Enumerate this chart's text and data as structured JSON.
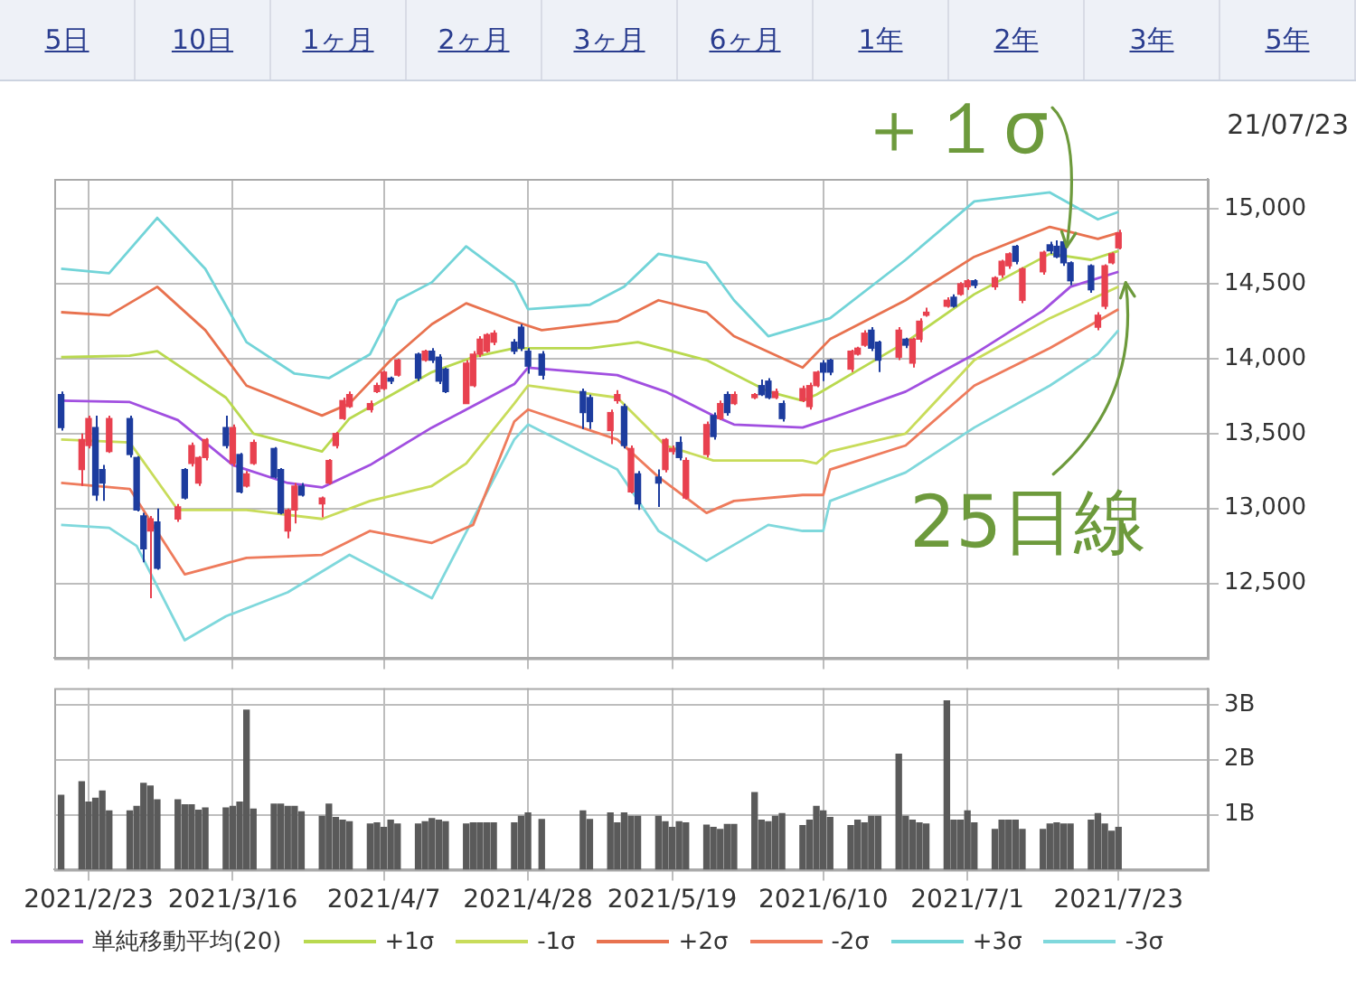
{
  "chart_data": [
    {
      "type": "candlestick",
      "annotations": [
        "5日",
        "10日",
        "1ヶ月",
        "2ヶ月",
        "3ヶ月",
        "6ヶ月",
        "1年",
        "2年",
        "3年",
        "5年",
        "21/07/23",
        {
          "text": "＋１σ",
          "x": "2021-07-16",
          "y": 14650
        },
        {
          "text": "25日線",
          "x": "2021-07-23",
          "y": 14580
        }
      ],
      "x": [
        "2021-02-19",
        "2021-02-22",
        "2021-02-23",
        "2021-02-24",
        "2021-02-25",
        "2021-02-26",
        "2021-03-01",
        "2021-03-02",
        "2021-03-03",
        "2021-03-04",
        "2021-03-05",
        "2021-03-08",
        "2021-03-09",
        "2021-03-10",
        "2021-03-11",
        "2021-03-12",
        "2021-03-15",
        "2021-03-16",
        "2021-03-17",
        "2021-03-18",
        "2021-03-19",
        "2021-03-22",
        "2021-03-23",
        "2021-03-24",
        "2021-03-25",
        "2021-03-26",
        "2021-03-29",
        "2021-03-30",
        "2021-03-31",
        "2021-04-01",
        "2021-04-02",
        "2021-04-05",
        "2021-04-06",
        "2021-04-07",
        "2021-04-08",
        "2021-04-09",
        "2021-04-12",
        "2021-04-13",
        "2021-04-14",
        "2021-04-15",
        "2021-04-16",
        "2021-04-19",
        "2021-04-20",
        "2021-04-21",
        "2021-04-22",
        "2021-04-23",
        "2021-04-26",
        "2021-04-27",
        "2021-04-28",
        "2021-04-30",
        "2021-05-06",
        "2021-05-07",
        "2021-05-10",
        "2021-05-11",
        "2021-05-12",
        "2021-05-13",
        "2021-05-14",
        "2021-05-17",
        "2021-05-18",
        "2021-05-19",
        "2021-05-20",
        "2021-05-21",
        "2021-05-24",
        "2021-05-25",
        "2021-05-26",
        "2021-05-27",
        "2021-05-28",
        "2021-05-31",
        "2021-06-01",
        "2021-06-02",
        "2021-06-03",
        "2021-06-04",
        "2021-06-07",
        "2021-06-08",
        "2021-06-09",
        "2021-06-10",
        "2021-06-11",
        "2021-06-14",
        "2021-06-15",
        "2021-06-16",
        "2021-06-17",
        "2021-06-18",
        "2021-06-21",
        "2021-06-22",
        "2021-06-23",
        "2021-06-24",
        "2021-06-25",
        "2021-06-28",
        "2021-06-29",
        "2021-06-30",
        "2021-07-01",
        "2021-07-02",
        "2021-07-05",
        "2021-07-06",
        "2021-07-07",
        "2021-07-08",
        "2021-07-09",
        "2021-07-12",
        "2021-07-13",
        "2021-07-14",
        "2021-07-15",
        "2021-07-16",
        "2021-07-19",
        "2021-07-20",
        "2021-07-21",
        "2021-07-22",
        "2021-07-23"
      ],
      "ohlc": [
        [
          13760,
          13780,
          13520,
          13540
        ],
        [
          13260,
          13500,
          13150,
          13460
        ],
        [
          13420,
          13620,
          13400,
          13600
        ],
        [
          13540,
          13620,
          13050,
          13090
        ],
        [
          13260,
          13290,
          13050,
          13170
        ],
        [
          13380,
          13620,
          13370,
          13600
        ],
        [
          13600,
          13620,
          13340,
          13360
        ],
        [
          13340,
          13350,
          12980,
          12990
        ],
        [
          12950,
          12970,
          12640,
          12730
        ],
        [
          12850,
          12950,
          12400,
          12930
        ],
        [
          12910,
          13000,
          12590,
          12600
        ],
        [
          12930,
          13030,
          12910,
          13010
        ],
        [
          13260,
          13270,
          13060,
          13070
        ],
        [
          13300,
          13440,
          13280,
          13420
        ],
        [
          13170,
          13350,
          13150,
          13340
        ],
        [
          13340,
          13470,
          13320,
          13460
        ],
        [
          13540,
          13620,
          13400,
          13420
        ],
        [
          13300,
          13560,
          13280,
          13540
        ],
        [
          13360,
          13370,
          13100,
          13110
        ],
        [
          13150,
          13250,
          13140,
          13230
        ],
        [
          13300,
          13460,
          13290,
          13440
        ],
        [
          13400,
          13410,
          13200,
          13210
        ],
        [
          13260,
          13270,
          12960,
          12970
        ],
        [
          12850,
          13000,
          12800,
          12990
        ],
        [
          12990,
          13170,
          12900,
          13150
        ],
        [
          13150,
          13170,
          13080,
          13090
        ],
        [
          13030,
          13080,
          12940,
          13070
        ],
        [
          13170,
          13330,
          13160,
          13320
        ],
        [
          13420,
          13510,
          13400,
          13500
        ],
        [
          13600,
          13740,
          13590,
          13720
        ],
        [
          13680,
          13780,
          13670,
          13760
        ],
        [
          13660,
          13720,
          13640,
          13700
        ],
        [
          13780,
          13840,
          13770,
          13820
        ],
        [
          13800,
          13920,
          13790,
          13910
        ],
        [
          13870,
          13880,
          13830,
          13850
        ],
        [
          13890,
          14000,
          13880,
          13990
        ],
        [
          14030,
          14040,
          13850,
          13870
        ],
        [
          13990,
          14060,
          13980,
          14050
        ],
        [
          14050,
          14070,
          13970,
          13990
        ],
        [
          14010,
          14030,
          13830,
          13850
        ],
        [
          13930,
          13940,
          13770,
          13780
        ],
        [
          13700,
          13990,
          13700,
          13970
        ],
        [
          13820,
          14050,
          13810,
          14030
        ],
        [
          14030,
          14150,
          14010,
          14130
        ],
        [
          14050,
          14170,
          14040,
          14160
        ],
        [
          14110,
          14190,
          14090,
          14170
        ],
        [
          14110,
          14130,
          14030,
          14050
        ],
        [
          14210,
          14230,
          14050,
          14070
        ],
        [
          14050,
          14070,
          13900,
          13950
        ],
        [
          14030,
          14050,
          13860,
          13890
        ],
        [
          13780,
          13800,
          13530,
          13640
        ],
        [
          13740,
          13760,
          13530,
          13580
        ],
        [
          13520,
          13660,
          13430,
          13640
        ],
        [
          13720,
          13790,
          13700,
          13760
        ],
        [
          13680,
          13700,
          13400,
          13420
        ],
        [
          13110,
          13420,
          13100,
          13400
        ],
        [
          13230,
          13250,
          12990,
          13030
        ],
        [
          13210,
          13260,
          13010,
          13170
        ],
        [
          13260,
          13470,
          13240,
          13460
        ],
        [
          13380,
          13420,
          13360,
          13400
        ],
        [
          13440,
          13480,
          13320,
          13340
        ],
        [
          13070,
          13340,
          13060,
          13320
        ],
        [
          13360,
          13580,
          13340,
          13560
        ],
        [
          13620,
          13640,
          13460,
          13480
        ],
        [
          13600,
          13720,
          13590,
          13700
        ],
        [
          13760,
          13780,
          13620,
          13640
        ],
        [
          13700,
          13780,
          13690,
          13760
        ],
        [
          13740,
          13770,
          13730,
          13760
        ],
        [
          13820,
          13860,
          13750,
          13760
        ],
        [
          13850,
          13870,
          13730,
          13740
        ],
        [
          13740,
          13800,
          13730,
          13780
        ],
        [
          13700,
          13720,
          13580,
          13600
        ],
        [
          13720,
          13820,
          13710,
          13800
        ],
        [
          13680,
          13840,
          13660,
          13820
        ],
        [
          13820,
          13920,
          13810,
          13910
        ],
        [
          13970,
          13990,
          13850,
          13910
        ],
        [
          13990,
          14000,
          13890,
          13910
        ],
        [
          13930,
          14060,
          13910,
          14050
        ],
        [
          14030,
          14080,
          14020,
          14070
        ],
        [
          14090,
          14190,
          14080,
          14170
        ],
        [
          14190,
          14210,
          14050,
          14070
        ],
        [
          14110,
          14120,
          13910,
          13990
        ],
        [
          14010,
          14210,
          13990,
          14190
        ],
        [
          14130,
          14140,
          14070,
          14090
        ],
        [
          13970,
          14140,
          13940,
          14130
        ],
        [
          14130,
          14270,
          14110,
          14250
        ],
        [
          14290,
          14340,
          14280,
          14310
        ],
        [
          14350,
          14410,
          14340,
          14390
        ],
        [
          14410,
          14430,
          14340,
          14350
        ],
        [
          14430,
          14510,
          14420,
          14500
        ],
        [
          14480,
          14530,
          14460,
          14520
        ],
        [
          14520,
          14530,
          14470,
          14490
        ],
        [
          14480,
          14550,
          14460,
          14540
        ],
        [
          14560,
          14660,
          14540,
          14650
        ],
        [
          14620,
          14710,
          14600,
          14700
        ],
        [
          14750,
          14760,
          14630,
          14650
        ],
        [
          14390,
          14610,
          14370,
          14600
        ],
        [
          14580,
          14720,
          14560,
          14710
        ],
        [
          14760,
          14780,
          14700,
          14720
        ],
        [
          14750,
          14790,
          14670,
          14680
        ],
        [
          14780,
          14800,
          14620,
          14640
        ],
        [
          14640,
          14650,
          14490,
          14520
        ],
        [
          14620,
          14630,
          14440,
          14460
        ],
        [
          14210,
          14310,
          14190,
          14290
        ],
        [
          14350,
          14630,
          14330,
          14620
        ],
        [
          14640,
          14710,
          14630,
          14700
        ],
        [
          14740,
          14860,
          14730,
          14840
        ]
      ],
      "colors": [
        "#1d3c9e",
        "#e8414f",
        "#e8414f",
        "#1d3c9e",
        "#1d3c9e",
        "#e8414f",
        "#1d3c9e",
        "#1d3c9e",
        "#1d3c9e",
        "#e8414f",
        "#1d3c9e",
        "#e8414f",
        "#1d3c9e",
        "#e8414f",
        "#e8414f",
        "#e8414f",
        "#1d3c9e",
        "#e8414f",
        "#1d3c9e",
        "#e8414f",
        "#e8414f",
        "#1d3c9e",
        "#1d3c9e",
        "#e8414f",
        "#e8414f",
        "#1d3c9e",
        "#e8414f",
        "#e8414f",
        "#e8414f",
        "#e8414f",
        "#e8414f",
        "#e8414f",
        "#e8414f",
        "#e8414f",
        "#1d3c9e",
        "#e8414f",
        "#1d3c9e",
        "#e8414f",
        "#1d3c9e",
        "#1d3c9e",
        "#1d3c9e",
        "#e8414f",
        "#e8414f",
        "#e8414f",
        "#e8414f",
        "#e8414f",
        "#1d3c9e",
        "#1d3c9e",
        "#1d3c9e",
        "#1d3c9e",
        "#1d3c9e",
        "#1d3c9e",
        "#e8414f",
        "#e8414f",
        "#1d3c9e",
        "#e8414f",
        "#1d3c9e",
        "#1d3c9e",
        "#e8414f",
        "#e8414f",
        "#1d3c9e",
        "#e8414f",
        "#e8414f",
        "#1d3c9e",
        "#e8414f",
        "#1d3c9e",
        "#e8414f",
        "#e8414f",
        "#1d3c9e",
        "#1d3c9e",
        "#e8414f",
        "#1d3c9e",
        "#e8414f",
        "#e8414f",
        "#e8414f",
        "#1d3c9e",
        "#1d3c9e",
        "#e8414f",
        "#e8414f",
        "#e8414f",
        "#1d3c9e",
        "#1d3c9e",
        "#e8414f",
        "#1d3c9e",
        "#e8414f",
        "#e8414f",
        "#e8414f",
        "#e8414f",
        "#1d3c9e",
        "#e8414f",
        "#e8414f",
        "#1d3c9e",
        "#e8414f",
        "#e8414f",
        "#e8414f",
        "#1d3c9e",
        "#e8414f",
        "#e8414f",
        "#1d3c9e",
        "#1d3c9e",
        "#1d3c9e",
        "#1d3c9e",
        "#1d3c9e",
        "#e8414f",
        "#e8414f",
        "#e8414f",
        "#e8414f"
      ],
      "series": [
        {
          "name": "単純移動平均(20)",
          "type": "line",
          "color": "#a14fe0",
          "x": [
            "2021-02-19",
            "2021-03-01",
            "2021-03-08",
            "2021-03-16",
            "2021-03-24",
            "2021-03-29",
            "2021-04-05",
            "2021-04-14",
            "2021-04-19",
            "2021-04-26",
            "2021-04-28",
            "2021-05-11",
            "2021-05-18",
            "2021-05-25",
            "2021-05-28",
            "2021-06-07",
            "2021-06-11",
            "2021-06-22",
            "2021-07-02",
            "2021-07-12",
            "2021-07-16",
            "2021-07-23"
          ],
          "values": [
            13720,
            13710,
            13590,
            13290,
            13170,
            13140,
            13290,
            13540,
            13660,
            13830,
            13940,
            13890,
            13780,
            13620,
            13560,
            13540,
            13600,
            13780,
            14030,
            14320,
            14480,
            14580
          ]
        },
        {
          "name": "+1σ",
          "type": "line",
          "color": "#b9d94f",
          "x": [
            "2021-02-19",
            "2021-03-01",
            "2021-03-05",
            "2021-03-15",
            "2021-03-19",
            "2021-03-29",
            "2021-04-02",
            "2021-04-14",
            "2021-04-20",
            "2021-04-26",
            "2021-05-07",
            "2021-05-14",
            "2021-05-24",
            "2021-06-02",
            "2021-06-07",
            "2021-06-09",
            "2021-06-22",
            "2021-07-02",
            "2021-07-13",
            "2021-07-19",
            "2021-07-23"
          ],
          "values": [
            14010,
            14020,
            14050,
            13740,
            13500,
            13380,
            13600,
            13910,
            14010,
            14070,
            14070,
            14110,
            13990,
            13780,
            13720,
            13760,
            14110,
            14430,
            14700,
            14660,
            14720
          ]
        },
        {
          "name": "-1σ",
          "type": "line",
          "color": "#c8dc5a",
          "x": [
            "2021-02-19",
            "2021-03-01",
            "2021-03-08",
            "2021-03-18",
            "2021-03-29",
            "2021-04-05",
            "2021-04-14",
            "2021-04-19",
            "2021-04-26",
            "2021-04-28",
            "2021-05-11",
            "2021-05-18",
            "2021-05-25",
            "2021-06-07",
            "2021-06-09",
            "2021-06-11",
            "2021-06-22",
            "2021-07-02",
            "2021-07-13",
            "2021-07-23"
          ],
          "values": [
            13460,
            13440,
            12990,
            12990,
            12930,
            13050,
            13150,
            13300,
            13700,
            13820,
            13740,
            13420,
            13320,
            13320,
            13300,
            13380,
            13500,
            13990,
            14270,
            14480
          ]
        },
        {
          "name": "+2σ",
          "type": "line",
          "color": "#e8724f",
          "x": [
            "2021-02-19",
            "2021-02-26",
            "2021-03-05",
            "2021-03-12",
            "2021-03-18",
            "2021-03-29",
            "2021-04-02",
            "2021-04-08",
            "2021-04-14",
            "2021-04-19",
            "2021-04-26",
            "2021-04-30",
            "2021-05-11",
            "2021-05-17",
            "2021-05-24",
            "2021-05-28",
            "2021-06-07",
            "2021-06-11",
            "2021-06-22",
            "2021-07-02",
            "2021-07-13",
            "2021-07-20",
            "2021-07-23"
          ],
          "values": [
            14310,
            14290,
            14480,
            14190,
            13820,
            13620,
            13700,
            13990,
            14230,
            14370,
            14250,
            14190,
            14250,
            14390,
            14310,
            14150,
            13940,
            14130,
            14390,
            14680,
            14880,
            14800,
            14840
          ]
        },
        {
          "name": "-2σ",
          "type": "line",
          "color": "#ee7b5c",
          "x": [
            "2021-02-19",
            "2021-03-01",
            "2021-03-09",
            "2021-03-18",
            "2021-03-29",
            "2021-04-05",
            "2021-04-14",
            "2021-04-20",
            "2021-04-26",
            "2021-04-28",
            "2021-05-11",
            "2021-05-17",
            "2021-05-24",
            "2021-05-28",
            "2021-06-07",
            "2021-06-10",
            "2021-06-11",
            "2021-06-22",
            "2021-07-02",
            "2021-07-13",
            "2021-07-23"
          ],
          "values": [
            13170,
            13130,
            12560,
            12670,
            12690,
            12850,
            12770,
            12890,
            13580,
            13660,
            13460,
            13210,
            12970,
            13050,
            13090,
            13090,
            13260,
            13420,
            13820,
            14070,
            14330
          ]
        },
        {
          "name": "+3σ",
          "type": "line",
          "color": "#72d4d8",
          "x": [
            "2021-02-19",
            "2021-02-26",
            "2021-03-05",
            "2021-03-12",
            "2021-03-18",
            "2021-03-25",
            "2021-03-30",
            "2021-04-05",
            "2021-04-09",
            "2021-04-14",
            "2021-04-19",
            "2021-04-26",
            "2021-04-28",
            "2021-05-07",
            "2021-05-12",
            "2021-05-17",
            "2021-05-24",
            "2021-05-28",
            "2021-06-02",
            "2021-06-11",
            "2021-06-22",
            "2021-07-02",
            "2021-07-13",
            "2021-07-20",
            "2021-07-23"
          ],
          "values": [
            14600,
            14570,
            14940,
            14600,
            14110,
            13900,
            13870,
            14030,
            14390,
            14510,
            14750,
            14510,
            14330,
            14360,
            14480,
            14700,
            14640,
            14390,
            14150,
            14270,
            14660,
            15050,
            15110,
            14930,
            14980
          ]
        },
        {
          "name": "-3σ",
          "type": "line",
          "color": "#7fd8dc",
          "x": [
            "2021-02-19",
            "2021-02-26",
            "2021-03-02",
            "2021-03-09",
            "2021-03-15",
            "2021-03-24",
            "2021-04-02",
            "2021-04-14",
            "2021-04-26",
            "2021-04-28",
            "2021-05-11",
            "2021-05-17",
            "2021-05-24",
            "2021-06-02",
            "2021-06-07",
            "2021-06-10",
            "2021-06-11",
            "2021-06-22",
            "2021-07-02",
            "2021-07-13",
            "2021-07-20",
            "2021-07-23"
          ],
          "values": [
            12890,
            12870,
            12750,
            12120,
            12280,
            12440,
            12690,
            12400,
            13460,
            13560,
            13260,
            12850,
            12650,
            12890,
            12850,
            12850,
            13050,
            13240,
            13540,
            13820,
            14030,
            14190
          ]
        }
      ],
      "xlim": [
        "2021-02-18",
        "2021-08-05"
      ],
      "xticks": [
        {
          "value": "2021-02-23",
          "label": null
        },
        {
          "value": "2021-03-16",
          "label": null
        },
        {
          "value": "2021-04-07",
          "label": null
        },
        {
          "value": "2021-04-28",
          "label": null
        },
        {
          "value": "2021-05-19",
          "label": null
        },
        {
          "value": "2021-06-10",
          "label": null
        },
        {
          "value": "2021-07-01",
          "label": null
        },
        {
          "value": "2021-07-23",
          "label": null
        }
      ],
      "ylim": [
        12000,
        15200
      ],
      "yticks": [
        {
          "value": 12500,
          "label": "12,500"
        },
        {
          "value": 13000,
          "label": "13,000"
        },
        {
          "value": 13500,
          "label": "13,500"
        },
        {
          "value": 14000,
          "label": "14,000"
        },
        {
          "value": 14500,
          "label": "14,500"
        },
        {
          "value": 15000,
          "label": "15,000"
        }
      ],
      "tick_labels": "y",
      "grid": true,
      "legend": "bottom",
      "marker": "none"
    },
    {
      "type": "bar",
      "x": [
        "2021-02-19",
        "2021-02-22",
        "2021-02-23",
        "2021-02-24",
        "2021-02-25",
        "2021-02-26",
        "2021-03-01",
        "2021-03-02",
        "2021-03-03",
        "2021-03-04",
        "2021-03-05",
        "2021-03-08",
        "2021-03-09",
        "2021-03-10",
        "2021-03-11",
        "2021-03-12",
        "2021-03-15",
        "2021-03-16",
        "2021-03-17",
        "2021-03-18",
        "2021-03-19",
        "2021-03-22",
        "2021-03-23",
        "2021-03-24",
        "2021-03-25",
        "2021-03-26",
        "2021-03-29",
        "2021-03-30",
        "2021-03-31",
        "2021-04-01",
        "2021-04-02",
        "2021-04-05",
        "2021-04-06",
        "2021-04-07",
        "2021-04-08",
        "2021-04-09",
        "2021-04-12",
        "2021-04-13",
        "2021-04-14",
        "2021-04-15",
        "2021-04-16",
        "2021-04-19",
        "2021-04-20",
        "2021-04-21",
        "2021-04-22",
        "2021-04-23",
        "2021-04-26",
        "2021-04-27",
        "2021-04-28",
        "2021-04-30",
        "2021-05-06",
        "2021-05-07",
        "2021-05-10",
        "2021-05-11",
        "2021-05-12",
        "2021-05-13",
        "2021-05-14",
        "2021-05-17",
        "2021-05-18",
        "2021-05-19",
        "2021-05-20",
        "2021-05-21",
        "2021-05-24",
        "2021-05-25",
        "2021-05-26",
        "2021-05-27",
        "2021-05-28",
        "2021-05-31",
        "2021-06-01",
        "2021-06-02",
        "2021-06-03",
        "2021-06-04",
        "2021-06-07",
        "2021-06-08",
        "2021-06-09",
        "2021-06-10",
        "2021-06-11",
        "2021-06-14",
        "2021-06-15",
        "2021-06-16",
        "2021-06-17",
        "2021-06-18",
        "2021-06-21",
        "2021-06-22",
        "2021-06-23",
        "2021-06-24",
        "2021-06-25",
        "2021-06-28",
        "2021-06-29",
        "2021-06-30",
        "2021-07-01",
        "2021-07-02",
        "2021-07-05",
        "2021-07-06",
        "2021-07-07",
        "2021-07-08",
        "2021-07-09",
        "2021-07-12",
        "2021-07-13",
        "2021-07-14",
        "2021-07-15",
        "2021-07-16",
        "2021-07-19",
        "2021-07-20",
        "2021-07-21",
        "2021-07-22",
        "2021-07-23"
      ],
      "values": [
        1.35,
        1.6,
        1.23,
        1.3,
        1.43,
        1.07,
        1.07,
        1.15,
        1.57,
        1.52,
        1.27,
        1.27,
        1.18,
        1.18,
        1.08,
        1.12,
        1.12,
        1.15,
        1.23,
        2.9,
        1.1,
        1.19,
        1.19,
        1.15,
        1.15,
        1.05,
        0.97,
        1.19,
        0.95,
        0.9,
        0.87,
        0.83,
        0.85,
        0.77,
        0.9,
        0.83,
        0.83,
        0.87,
        0.93,
        0.9,
        0.87,
        0.83,
        0.85,
        0.85,
        0.85,
        0.85,
        0.85,
        0.97,
        1.03,
        0.91,
        1.07,
        0.91,
        1.03,
        0.85,
        1.03,
        0.97,
        0.97,
        0.97,
        0.87,
        0.77,
        0.87,
        0.85,
        0.81,
        0.77,
        0.73,
        0.82,
        0.82,
        1.4,
        0.9,
        0.87,
        0.97,
        1.02,
        0.8,
        0.9,
        1.15,
        1.07,
        0.95,
        0.8,
        0.9,
        0.85,
        0.97,
        0.97,
        2.1,
        0.97,
        0.9,
        0.85,
        0.83,
        3.07,
        0.9,
        0.9,
        1.07,
        0.85,
        0.73,
        0.9,
        0.9,
        0.9,
        0.73,
        0.73,
        0.83,
        0.85,
        0.83,
        0.83,
        0.9,
        1.02,
        0.83,
        0.7,
        0.77
      ],
      "color": "#5a5a5a",
      "xlim": [
        "2021-02-18",
        "2021-08-05"
      ],
      "xticks": [
        {
          "value": "2021-02-23",
          "label": "2021/2/23"
        },
        {
          "value": "2021-03-16",
          "label": "2021/3/16"
        },
        {
          "value": "2021-04-07",
          "label": "2021/4/7"
        },
        {
          "value": "2021-04-28",
          "label": "2021/4/28"
        },
        {
          "value": "2021-05-19",
          "label": "2021/5/19"
        },
        {
          "value": "2021-06-10",
          "label": "2021/6/10"
        },
        {
          "value": "2021-07-01",
          "label": "2021/7/1"
        },
        {
          "value": "2021-07-23",
          "label": "2021/7/23"
        }
      ],
      "ylim": [
        0,
        3.3
      ],
      "yticks": [
        {
          "value": 1,
          "label": "1B"
        },
        {
          "value": 2,
          "label": "2B"
        },
        {
          "value": 3,
          "label": "3B"
        }
      ],
      "grid": true
    }
  ]
}
